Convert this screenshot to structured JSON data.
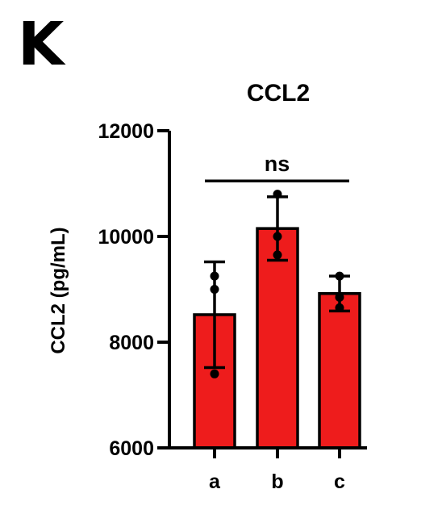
{
  "panel_label": "K",
  "chart_data": {
    "type": "bar",
    "title": "CCL2",
    "xlabel": "",
    "ylabel": "CCL2 (pg/mL)",
    "categories": [
      "a",
      "b",
      "c"
    ],
    "values": [
      8520,
      10150,
      8920
    ],
    "error": [
      1000,
      600,
      330
    ],
    "points": [
      [
        9250,
        9000,
        7400
      ],
      [
        10800,
        10000,
        9650
      ],
      [
        9250,
        8850,
        8650
      ]
    ],
    "ylim": [
      6000,
      12000
    ],
    "yticks": [
      6000,
      8000,
      10000,
      12000
    ],
    "significance": {
      "label": "ns",
      "from": "a",
      "to": "c",
      "y": 11050
    },
    "bar_color": "#ee1c1c",
    "grid": false
  }
}
